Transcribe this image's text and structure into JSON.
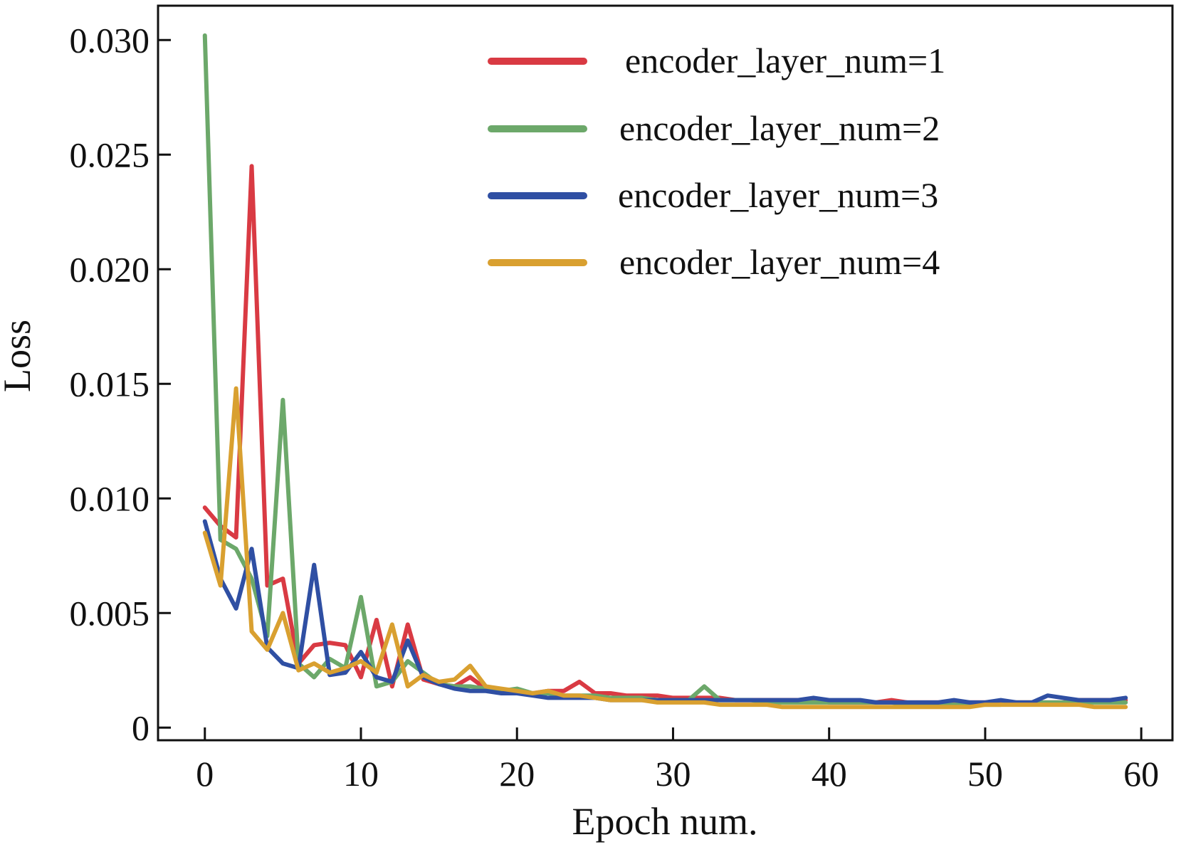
{
  "chart_data": {
    "type": "line",
    "title": "",
    "xlabel": "Epoch num.",
    "ylabel": "Loss",
    "xlim": [
      -3,
      62
    ],
    "ylim": [
      -0.00055,
      0.0315
    ],
    "xticks": [
      0,
      10,
      20,
      30,
      40,
      50,
      60
    ],
    "xtick_labels": [
      "0",
      "10",
      "20",
      "30",
      "40",
      "50",
      "60"
    ],
    "yticks": [
      0,
      0.005,
      0.01,
      0.015,
      0.02,
      0.025,
      0.03
    ],
    "ytick_labels": [
      "0",
      "0.005",
      "0.010",
      "0.015",
      "0.020",
      "0.025",
      "0.030"
    ],
    "grid": false,
    "legend_position": "top-right",
    "x": [
      0,
      1,
      2,
      3,
      4,
      5,
      6,
      7,
      8,
      9,
      10,
      11,
      12,
      13,
      14,
      15,
      16,
      17,
      18,
      19,
      20,
      21,
      22,
      23,
      24,
      25,
      26,
      27,
      28,
      29,
      30,
      31,
      32,
      33,
      34,
      35,
      36,
      37,
      38,
      39,
      40,
      41,
      42,
      43,
      44,
      45,
      46,
      47,
      48,
      49,
      50,
      51,
      52,
      53,
      54,
      55,
      56,
      57,
      58,
      59
    ],
    "series": [
      {
        "name": "encoder_layer_num=1",
        "color": "#d93a43",
        "values": [
          0.0096,
          0.0088,
          0.0083,
          0.0245,
          0.0062,
          0.0065,
          0.0028,
          0.0036,
          0.0037,
          0.0036,
          0.0022,
          0.0047,
          0.0018,
          0.0045,
          0.0021,
          0.0019,
          0.0018,
          0.0022,
          0.0017,
          0.0016,
          0.0016,
          0.0015,
          0.0016,
          0.0016,
          0.002,
          0.0015,
          0.0015,
          0.0014,
          0.0014,
          0.0014,
          0.0013,
          0.0013,
          0.0013,
          0.0013,
          0.0012,
          0.0012,
          0.0012,
          0.0012,
          0.0012,
          0.0012,
          0.0011,
          0.0011,
          0.0011,
          0.0011,
          0.0012,
          0.0011,
          0.0011,
          0.0011,
          0.0011,
          0.0011,
          0.0011,
          0.0011,
          0.0011,
          0.0011,
          0.0011,
          0.0011,
          0.0012,
          0.0012,
          0.0012,
          0.0012
        ]
      },
      {
        "name": "encoder_layer_num=2",
        "color": "#6ca86a",
        "values": [
          0.0302,
          0.0082,
          0.0078,
          0.0065,
          0.004,
          0.0143,
          0.0028,
          0.0022,
          0.003,
          0.0026,
          0.0057,
          0.0018,
          0.002,
          0.0029,
          0.0024,
          0.0019,
          0.0018,
          0.0018,
          0.0017,
          0.0016,
          0.0017,
          0.0015,
          0.0015,
          0.0014,
          0.0014,
          0.0014,
          0.0013,
          0.0013,
          0.0013,
          0.0012,
          0.0012,
          0.0012,
          0.0018,
          0.0012,
          0.0012,
          0.0012,
          0.0011,
          0.0011,
          0.0011,
          0.0011,
          0.0011,
          0.0011,
          0.0011,
          0.0011,
          0.0011,
          0.001,
          0.001,
          0.001,
          0.001,
          0.001,
          0.001,
          0.001,
          0.0011,
          0.0011,
          0.0011,
          0.0011,
          0.0011,
          0.0011,
          0.0011,
          0.0011
        ]
      },
      {
        "name": "encoder_layer_num=3",
        "color": "#2f4fa3",
        "values": [
          0.009,
          0.0065,
          0.0052,
          0.0078,
          0.0035,
          0.0028,
          0.0026,
          0.0071,
          0.0023,
          0.0024,
          0.0033,
          0.0022,
          0.002,
          0.0038,
          0.0022,
          0.0019,
          0.0017,
          0.0016,
          0.0016,
          0.0015,
          0.0015,
          0.0014,
          0.0013,
          0.0013,
          0.0013,
          0.0013,
          0.0012,
          0.0012,
          0.0012,
          0.0012,
          0.0012,
          0.0012,
          0.0012,
          0.0012,
          0.0012,
          0.0012,
          0.0012,
          0.0012,
          0.0012,
          0.0013,
          0.0012,
          0.0012,
          0.0012,
          0.0011,
          0.0011,
          0.0011,
          0.0011,
          0.0011,
          0.0012,
          0.0011,
          0.0011,
          0.0012,
          0.0011,
          0.0011,
          0.0014,
          0.0013,
          0.0012,
          0.0012,
          0.0012,
          0.0013
        ]
      },
      {
        "name": "encoder_layer_num=4",
        "color": "#d9a030",
        "values": [
          0.0085,
          0.0062,
          0.0148,
          0.0042,
          0.0034,
          0.005,
          0.0025,
          0.0028,
          0.0024,
          0.0026,
          0.0029,
          0.0024,
          0.0045,
          0.0018,
          0.0023,
          0.002,
          0.0021,
          0.0027,
          0.0018,
          0.0017,
          0.0016,
          0.0015,
          0.0016,
          0.0014,
          0.0014,
          0.0013,
          0.0012,
          0.0012,
          0.0012,
          0.0011,
          0.0011,
          0.0011,
          0.0011,
          0.001,
          0.001,
          0.001,
          0.001,
          0.0009,
          0.0009,
          0.0009,
          0.0009,
          0.0009,
          0.0009,
          0.0009,
          0.0009,
          0.0009,
          0.0009,
          0.0009,
          0.0009,
          0.0009,
          0.001,
          0.001,
          0.001,
          0.001,
          0.001,
          0.001,
          0.001,
          0.0009,
          0.0009,
          0.0009
        ]
      }
    ]
  }
}
